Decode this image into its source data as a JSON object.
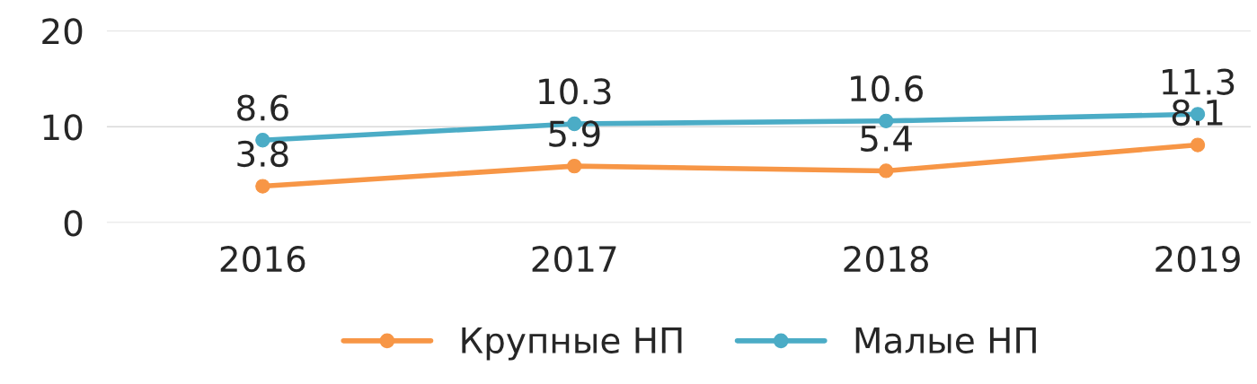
{
  "chart_data": {
    "type": "line",
    "categories": [
      "2016",
      "2017",
      "2018",
      "2019"
    ],
    "series": [
      {
        "name": "Крупные НП",
        "color": "#f79646",
        "values": [
          3.8,
          5.9,
          5.4,
          8.1
        ]
      },
      {
        "name": "Малые НП",
        "color": "#4bacc6",
        "values": [
          8.6,
          10.3,
          10.6,
          11.3
        ]
      }
    ],
    "ylim": [
      0,
      20
    ],
    "yticks": [
      0,
      10,
      20
    ],
    "grid": "y",
    "legend": "bottom",
    "marker": "circle",
    "line_style": "solid",
    "data_labels": true
  }
}
